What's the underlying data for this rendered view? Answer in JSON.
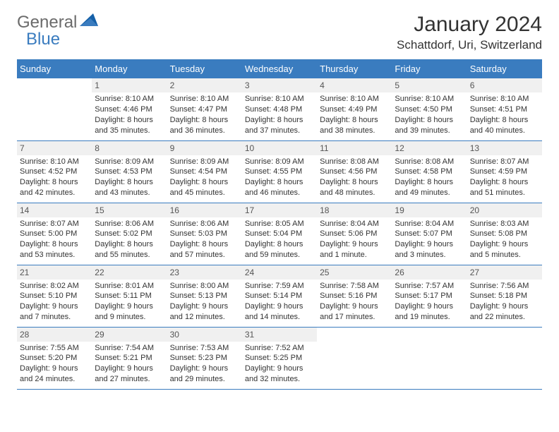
{
  "logo": {
    "part1": "General",
    "part2": "Blue"
  },
  "title": "January 2024",
  "location": "Schattdorf, Uri, Switzerland",
  "colors": {
    "header_bg": "#3a7cbf",
    "header_fg": "#ffffff",
    "daynum_bg": "#f0f0f0",
    "daynum_fg": "#555555",
    "body_text": "#333333",
    "row_border": "#3a7cbf",
    "logo_gray": "#6b6b6b",
    "logo_blue": "#3a7cbf"
  },
  "typography": {
    "title_fontsize": 30,
    "location_fontsize": 17,
    "th_fontsize": 13,
    "daynum_fontsize": 12,
    "body_fontsize": 11
  },
  "weekdays": [
    "Sunday",
    "Monday",
    "Tuesday",
    "Wednesday",
    "Thursday",
    "Friday",
    "Saturday"
  ],
  "weeks": [
    [
      {
        "blank": true
      },
      {
        "d": "1",
        "sr": "8:10 AM",
        "ss": "4:46 PM",
        "dl": "8 hours and 35 minutes."
      },
      {
        "d": "2",
        "sr": "8:10 AM",
        "ss": "4:47 PM",
        "dl": "8 hours and 36 minutes."
      },
      {
        "d": "3",
        "sr": "8:10 AM",
        "ss": "4:48 PM",
        "dl": "8 hours and 37 minutes."
      },
      {
        "d": "4",
        "sr": "8:10 AM",
        "ss": "4:49 PM",
        "dl": "8 hours and 38 minutes."
      },
      {
        "d": "5",
        "sr": "8:10 AM",
        "ss": "4:50 PM",
        "dl": "8 hours and 39 minutes."
      },
      {
        "d": "6",
        "sr": "8:10 AM",
        "ss": "4:51 PM",
        "dl": "8 hours and 40 minutes."
      }
    ],
    [
      {
        "d": "7",
        "sr": "8:10 AM",
        "ss": "4:52 PM",
        "dl": "8 hours and 42 minutes."
      },
      {
        "d": "8",
        "sr": "8:09 AM",
        "ss": "4:53 PM",
        "dl": "8 hours and 43 minutes."
      },
      {
        "d": "9",
        "sr": "8:09 AM",
        "ss": "4:54 PM",
        "dl": "8 hours and 45 minutes."
      },
      {
        "d": "10",
        "sr": "8:09 AM",
        "ss": "4:55 PM",
        "dl": "8 hours and 46 minutes."
      },
      {
        "d": "11",
        "sr": "8:08 AM",
        "ss": "4:56 PM",
        "dl": "8 hours and 48 minutes."
      },
      {
        "d": "12",
        "sr": "8:08 AM",
        "ss": "4:58 PM",
        "dl": "8 hours and 49 minutes."
      },
      {
        "d": "13",
        "sr": "8:07 AM",
        "ss": "4:59 PM",
        "dl": "8 hours and 51 minutes."
      }
    ],
    [
      {
        "d": "14",
        "sr": "8:07 AM",
        "ss": "5:00 PM",
        "dl": "8 hours and 53 minutes."
      },
      {
        "d": "15",
        "sr": "8:06 AM",
        "ss": "5:02 PM",
        "dl": "8 hours and 55 minutes."
      },
      {
        "d": "16",
        "sr": "8:06 AM",
        "ss": "5:03 PM",
        "dl": "8 hours and 57 minutes."
      },
      {
        "d": "17",
        "sr": "8:05 AM",
        "ss": "5:04 PM",
        "dl": "8 hours and 59 minutes."
      },
      {
        "d": "18",
        "sr": "8:04 AM",
        "ss": "5:06 PM",
        "dl": "9 hours and 1 minute."
      },
      {
        "d": "19",
        "sr": "8:04 AM",
        "ss": "5:07 PM",
        "dl": "9 hours and 3 minutes."
      },
      {
        "d": "20",
        "sr": "8:03 AM",
        "ss": "5:08 PM",
        "dl": "9 hours and 5 minutes."
      }
    ],
    [
      {
        "d": "21",
        "sr": "8:02 AM",
        "ss": "5:10 PM",
        "dl": "9 hours and 7 minutes."
      },
      {
        "d": "22",
        "sr": "8:01 AM",
        "ss": "5:11 PM",
        "dl": "9 hours and 9 minutes."
      },
      {
        "d": "23",
        "sr": "8:00 AM",
        "ss": "5:13 PM",
        "dl": "9 hours and 12 minutes."
      },
      {
        "d": "24",
        "sr": "7:59 AM",
        "ss": "5:14 PM",
        "dl": "9 hours and 14 minutes."
      },
      {
        "d": "25",
        "sr": "7:58 AM",
        "ss": "5:16 PM",
        "dl": "9 hours and 17 minutes."
      },
      {
        "d": "26",
        "sr": "7:57 AM",
        "ss": "5:17 PM",
        "dl": "9 hours and 19 minutes."
      },
      {
        "d": "27",
        "sr": "7:56 AM",
        "ss": "5:18 PM",
        "dl": "9 hours and 22 minutes."
      }
    ],
    [
      {
        "d": "28",
        "sr": "7:55 AM",
        "ss": "5:20 PM",
        "dl": "9 hours and 24 minutes."
      },
      {
        "d": "29",
        "sr": "7:54 AM",
        "ss": "5:21 PM",
        "dl": "9 hours and 27 minutes."
      },
      {
        "d": "30",
        "sr": "7:53 AM",
        "ss": "5:23 PM",
        "dl": "9 hours and 29 minutes."
      },
      {
        "d": "31",
        "sr": "7:52 AM",
        "ss": "5:25 PM",
        "dl": "9 hours and 32 minutes."
      },
      {
        "blank": true
      },
      {
        "blank": true
      },
      {
        "blank": true
      }
    ]
  ],
  "labels": {
    "sunrise": "Sunrise:",
    "sunset": "Sunset:",
    "daylight": "Daylight:"
  }
}
